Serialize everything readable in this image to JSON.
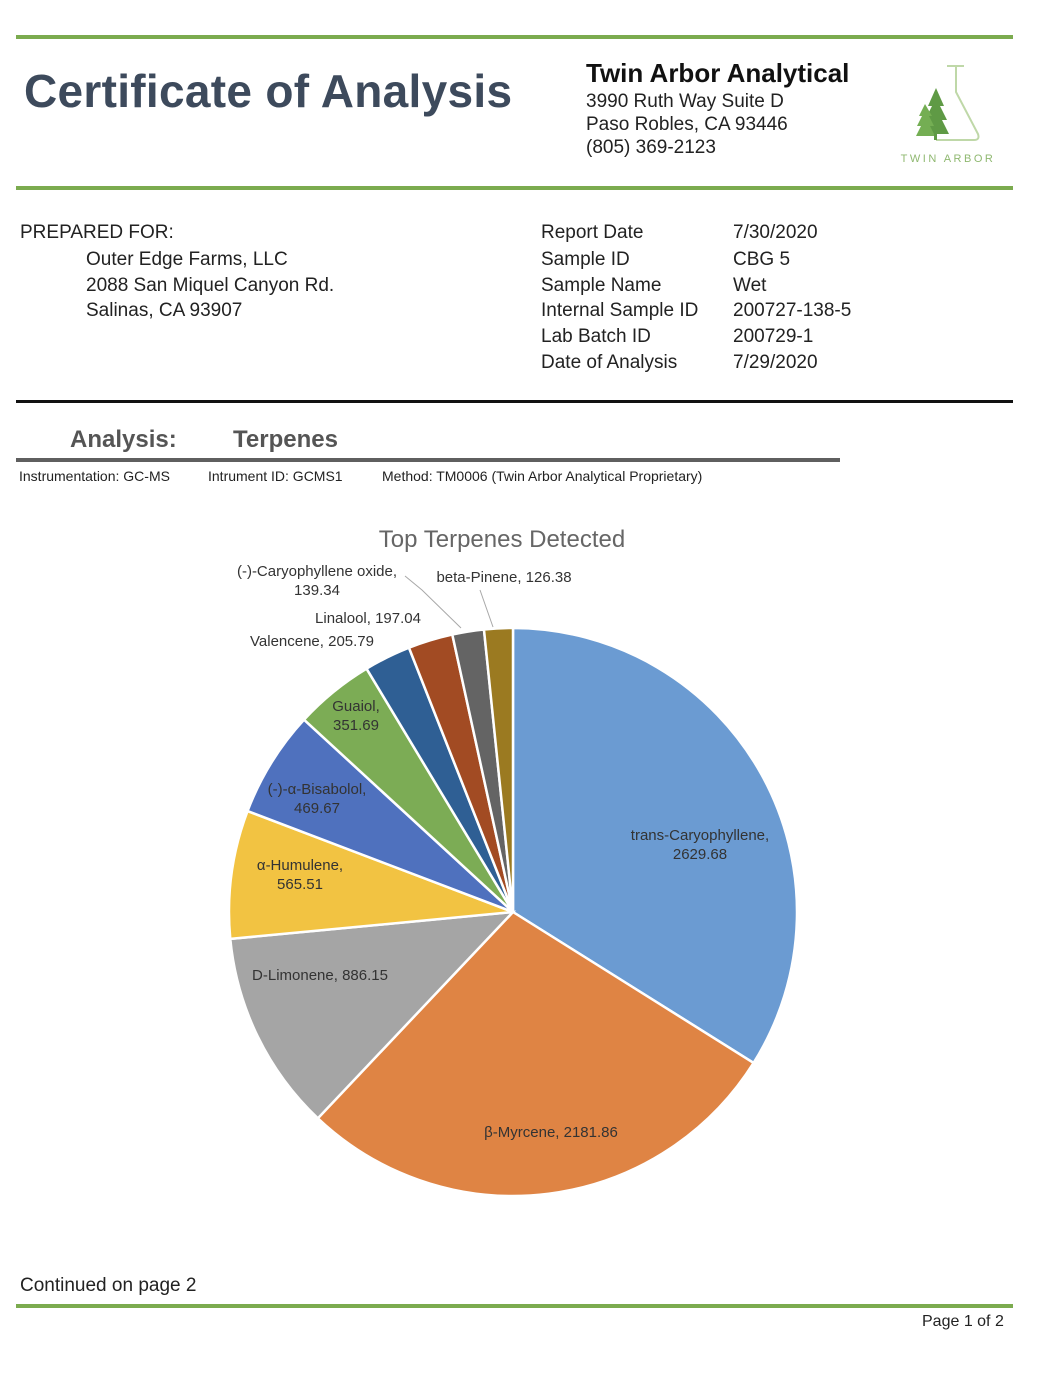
{
  "header": {
    "title": "Certificate of Analysis",
    "lab": {
      "name": "Twin Arbor Analytical",
      "address1": "3990 Ruth Way Suite D",
      "address2": "Paso Robles, CA 93446",
      "phone": "(805) 369-2123",
      "logo_text": "TWIN ARBOR"
    }
  },
  "client": {
    "label": "PREPARED FOR:",
    "name": "Outer Edge Farms, LLC",
    "street": "2088 San Miquel Canyon Rd.",
    "city": "Salinas, CA 93907"
  },
  "report_info": [
    {
      "label": "Report Date",
      "value": "7/30/2020"
    },
    {
      "label": "Sample ID",
      "value": "CBG 5"
    },
    {
      "label": "Sample Name",
      "value": "Wet"
    },
    {
      "label": "Internal Sample ID",
      "value": "200727-138-5"
    },
    {
      "label": "Lab Batch ID",
      "value": "200729-1"
    },
    {
      "label": "Date of Analysis",
      "value": "7/29/2020"
    }
  ],
  "analysis": {
    "label": "Analysis:",
    "type": "Terpenes",
    "instrumentation": "Instrumentation: GC-MS",
    "instrument_id": "Intrument ID: GCMS1",
    "method": "Method: TM0006 (Twin Arbor Analytical Proprietary)"
  },
  "chart_data": {
    "type": "pie",
    "title": "Top Terpenes Detected",
    "slices": [
      {
        "name": "trans-Caryophyllene",
        "value": 2629.68,
        "label_lines": [
          "trans-Caryophyllene,",
          "2629.68"
        ],
        "color": "#6b9bd2"
      },
      {
        "name": "β-Myrcene",
        "value": 2181.86,
        "label_lines": [
          "β-Myrcene, 2181.86"
        ],
        "color": "#df8444"
      },
      {
        "name": "D-Limonene",
        "value": 886.15,
        "label_lines": [
          "D-Limonene, 886.15"
        ],
        "color": "#a5a5a5"
      },
      {
        "name": "α-Humulene",
        "value": 565.51,
        "label_lines": [
          "α-Humulene,",
          "565.51"
        ],
        "color": "#f2c342"
      },
      {
        "name": "(-)-α-Bisabolol",
        "value": 469.67,
        "label_lines": [
          "(-)-α-Bisabolol,",
          "469.67"
        ],
        "color": "#4f71be"
      },
      {
        "name": "Guaiol",
        "value": 351.69,
        "label_lines": [
          "Guaiol,",
          "351.69"
        ],
        "color": "#7cac55"
      },
      {
        "name": "Valencene",
        "value": 205.79,
        "label_lines": [
          "Valencene, 205.79"
        ],
        "color": "#2f5f94"
      },
      {
        "name": "Linalool",
        "value": 197.04,
        "label_lines": [
          "Linalool, 197.04"
        ],
        "color": "#a24b23"
      },
      {
        "name": "(-)-Caryophyllene oxide",
        "value": 139.34,
        "label_lines": [
          "(-)-Caryophyllene oxide,",
          "139.34"
        ],
        "color": "#646464"
      },
      {
        "name": "beta-Pinene",
        "value": 126.38,
        "label_lines": [
          "beta-Pinene, 126.38"
        ],
        "color": "#9b7a21"
      }
    ]
  },
  "footer": {
    "continued": "Continued on page 2",
    "page": "Page 1 of 2"
  }
}
